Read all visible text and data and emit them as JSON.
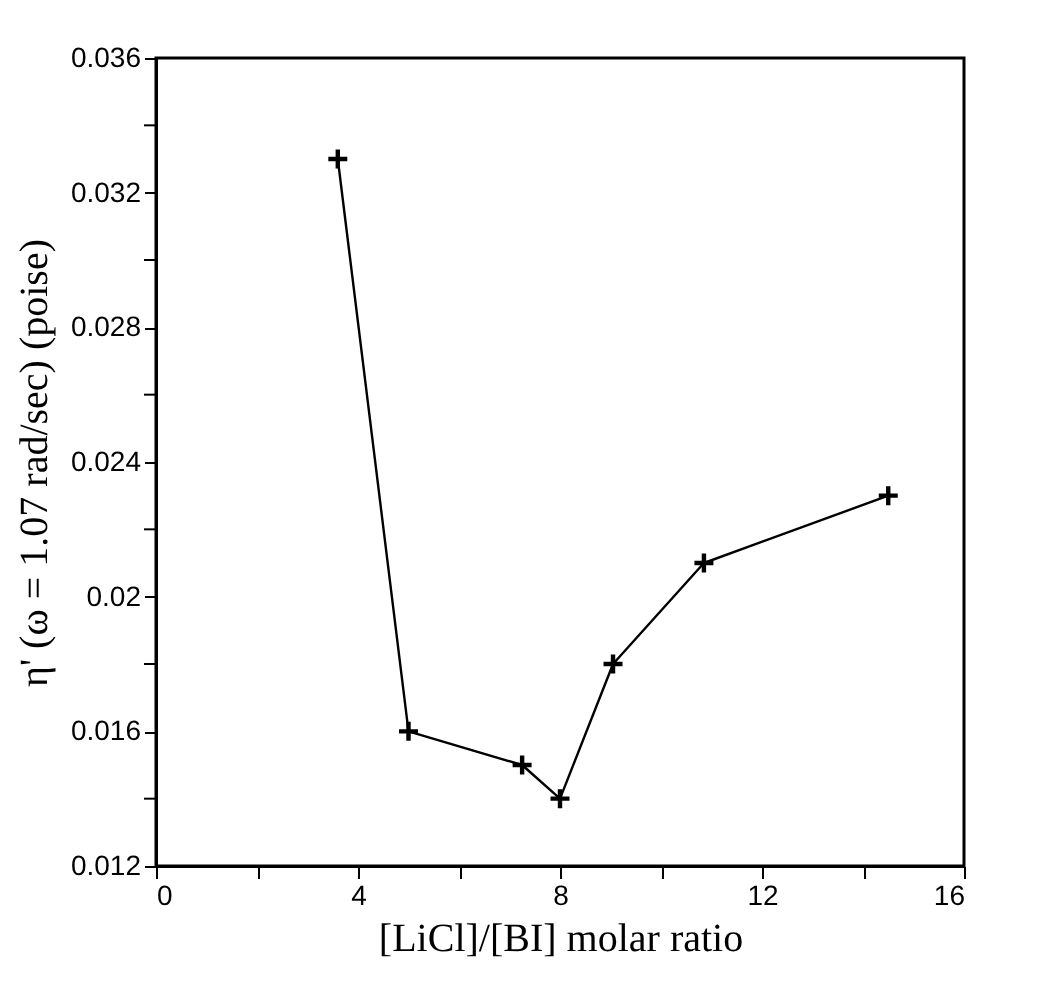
{
  "chart_data": {
    "type": "line",
    "xlabel": "[LiCl]/[BI] molar ratio",
    "ylabel": "η' (ω = 1.07 rad/sec) (poise)",
    "x": [
      3.6,
      5.0,
      7.25,
      8.0,
      9.05,
      10.85,
      14.5
    ],
    "series": [
      {
        "color": "#000000",
        "values": [
          0.033,
          0.016,
          0.015,
          0.014,
          0.018,
          0.021,
          0.023
        ]
      }
    ],
    "xlim": [
      0,
      16
    ],
    "xticks": [
      0,
      {
        "value": 2,
        "label": null
      },
      4,
      {
        "value": 6,
        "label": null
      },
      8,
      {
        "value": 10,
        "label": null
      },
      12,
      {
        "value": 14,
        "label": null
      },
      16
    ],
    "ylim": [
      0.012,
      0.036
    ],
    "yticks": [
      0.012,
      {
        "value": 0.014,
        "label": null
      },
      0.016,
      {
        "value": 0.018,
        "label": null
      },
      0.02,
      {
        "value": 0.022,
        "label": null
      },
      0.024,
      {
        "value": 0.026,
        "label": null
      },
      0.028,
      {
        "value": 0.03,
        "label": null
      },
      0.032,
      {
        "value": 0.034,
        "label": null
      },
      0.036
    ],
    "grid": false,
    "legend": false,
    "marker": "cross",
    "line_style": "solid"
  }
}
